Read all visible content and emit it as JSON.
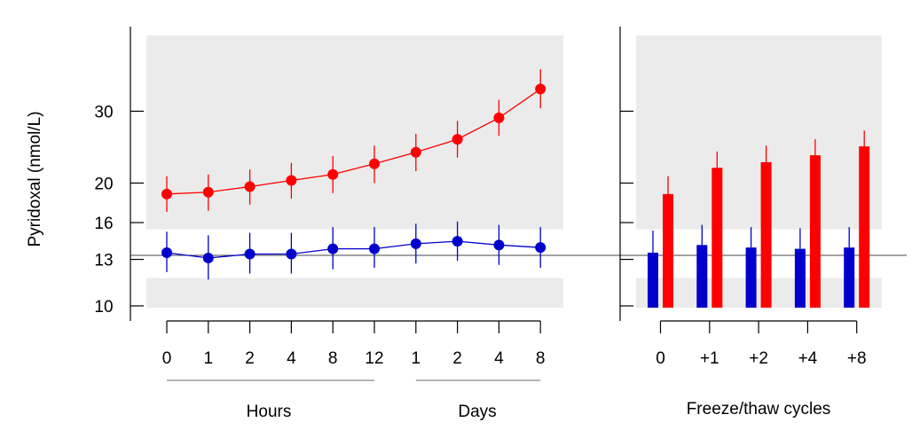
{
  "chart_data": [
    {
      "type": "line",
      "ylabel": "Pyridoxal (nmol/L)",
      "yscale": "log",
      "ylim": [
        9.9,
        46
      ],
      "yticks": [
        10,
        13,
        16,
        20,
        30
      ],
      "x_groups": [
        {
          "label": "Hours",
          "categories": [
            "0",
            "1",
            "2",
            "4",
            "8",
            "12"
          ]
        },
        {
          "label": "Days",
          "categories": [
            "1",
            "2",
            "4",
            "8"
          ]
        }
      ],
      "categories": [
        "0",
        "1",
        "2",
        "4",
        "8",
        "12",
        "1",
        "2",
        "4",
        "8"
      ],
      "reference_line": 13.3,
      "reference_band": [
        11.7,
        15.4
      ],
      "series": [
        {
          "color": "#ff0000",
          "values": [
            18.8,
            19.0,
            19.6,
            20.3,
            21.0,
            22.3,
            23.8,
            25.6,
            28.9,
            34.0
          ],
          "error_low": [
            17.0,
            17.1,
            17.7,
            18.3,
            18.9,
            20.0,
            21.4,
            23.1,
            26.1,
            30.5
          ],
          "error_high": [
            20.8,
            21.0,
            21.6,
            22.4,
            23.3,
            24.7,
            26.4,
            28.4,
            32.0,
            38.0
          ]
        },
        {
          "color": "#0000cc",
          "values": [
            13.5,
            13.1,
            13.4,
            13.4,
            13.8,
            13.8,
            14.2,
            14.4,
            14.1,
            13.9
          ],
          "error_low": [
            12.1,
            11.6,
            12.0,
            12.0,
            12.3,
            12.4,
            12.7,
            12.9,
            12.6,
            12.4
          ],
          "error_high": [
            15.2,
            14.9,
            15.1,
            15.1,
            15.6,
            15.6,
            15.9,
            16.1,
            15.8,
            15.6
          ]
        }
      ]
    },
    {
      "type": "bar",
      "xlabel": "Freeze/thaw cycles",
      "yscale": "log",
      "ylim": [
        9.9,
        46
      ],
      "categories": [
        "0",
        "+1",
        "+2",
        "+4",
        "+8"
      ],
      "reference_line": 13.3,
      "reference_band": [
        11.7,
        15.4
      ],
      "series": [
        {
          "color": "#0000cc",
          "values": [
            13.5,
            14.1,
            13.9,
            13.8,
            13.9
          ],
          "error_high": [
            15.3,
            15.8,
            15.6,
            15.5,
            15.6
          ]
        },
        {
          "color": "#ff0000",
          "values": [
            18.8,
            21.8,
            22.5,
            23.4,
            24.6
          ],
          "error_high": [
            20.8,
            23.9,
            24.7,
            25.6,
            26.9
          ]
        }
      ]
    }
  ]
}
